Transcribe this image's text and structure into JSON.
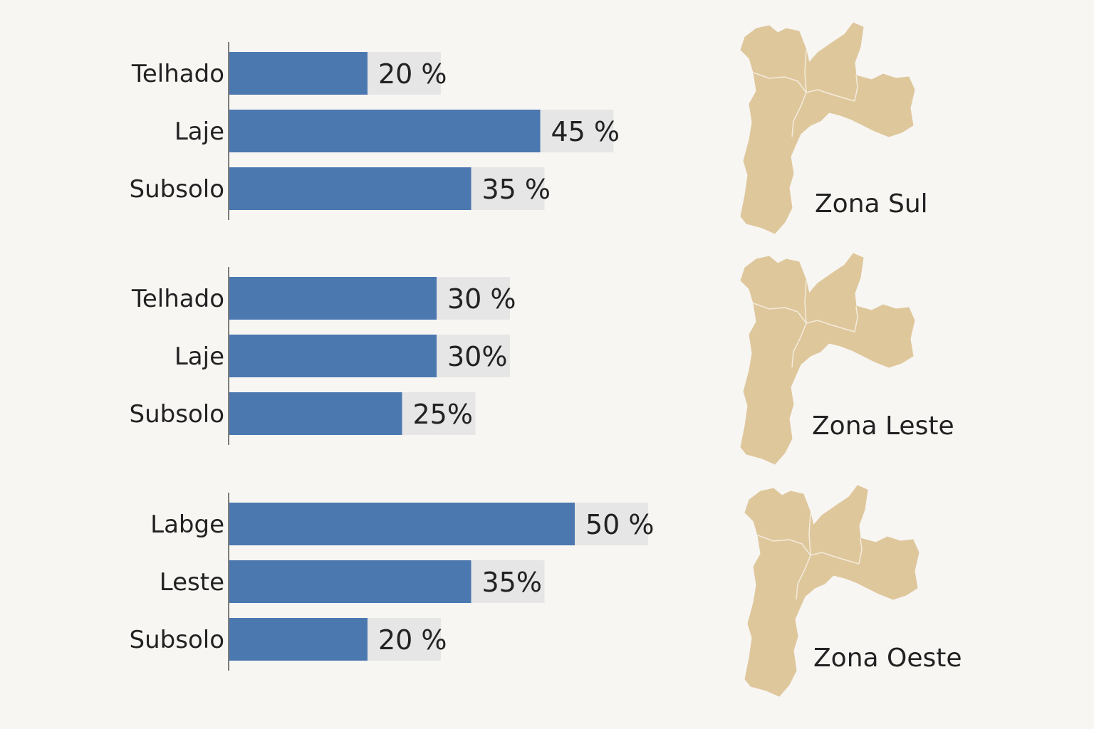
{
  "chart_data": [
    {
      "type": "bar",
      "orientation": "horizontal",
      "categories": [
        "Telhado",
        "Laje",
        "Subsolo"
      ],
      "values": [
        20,
        45,
        35
      ],
      "value_labels": [
        "20 %",
        "45 %",
        "35 %"
      ],
      "unit": "%",
      "region_label": "Zona Sul"
    },
    {
      "type": "bar",
      "orientation": "horizontal",
      "categories": [
        "Telhado",
        "Laje",
        "Subsolo"
      ],
      "values": [
        30,
        30,
        25
      ],
      "value_labels": [
        "30 %",
        "30%",
        "25%"
      ],
      "unit": "%",
      "region_label": "Zona Leste"
    },
    {
      "type": "bar",
      "orientation": "horizontal",
      "categories": [
        "Labge",
        "Leste",
        "Subsolo"
      ],
      "values": [
        50,
        35,
        20
      ],
      "value_labels": [
        "50 %",
        "35%",
        "20 %"
      ],
      "unit": "%",
      "region_label": "Zona Oeste"
    }
  ],
  "colors": {
    "background": "#f7f6f3",
    "bar": "#4c78b0",
    "value_box": "#e6e6e6",
    "map_fill": "#dfc79c",
    "map_border": "#f3ecdc",
    "axis": "#555555",
    "text": "#222222"
  },
  "icons": [
    "map-icon"
  ]
}
